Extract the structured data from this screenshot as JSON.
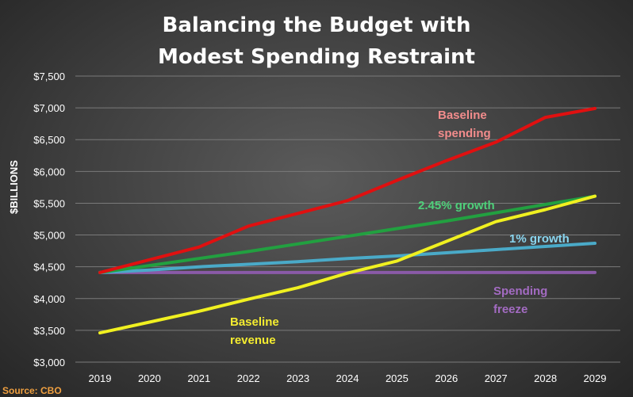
{
  "chart_data": {
    "type": "line",
    "title_lines": [
      "Balancing the Budget with",
      "Modest Spending Restraint"
    ],
    "ylabel": "$BILLIONS",
    "xlabel": "",
    "x": [
      2019,
      2020,
      2021,
      2022,
      2023,
      2024,
      2025,
      2026,
      2027,
      2028,
      2029
    ],
    "ylim": [
      3000,
      7500
    ],
    "ytick_values": [
      3000,
      3500,
      4000,
      4500,
      5000,
      5500,
      6000,
      6500,
      7000,
      7500
    ],
    "ytick_labels": [
      "$3,000",
      "$3,500",
      "$4,000",
      "$4,500",
      "$5,000",
      "$5,500",
      "$6,000",
      "$6,500",
      "$7,000",
      "$7,500"
    ],
    "grid": true,
    "series": [
      {
        "name": "Baseline spending",
        "label_lines": [
          "Baseline",
          "spending"
        ],
        "color": "#e01010",
        "label_color": "#f28c8c",
        "values": [
          4410,
          4610,
          4810,
          5140,
          5340,
          5540,
          5860,
          6170,
          6460,
          6850,
          6990
        ]
      },
      {
        "name": "2.45% growth",
        "label_lines": [
          "2.45% growth"
        ],
        "color": "#22a040",
        "label_color": "#4ed07a",
        "values": [
          4410,
          4520,
          4630,
          4740,
          4860,
          4980,
          5100,
          5220,
          5350,
          5480,
          5610
        ]
      },
      {
        "name": "1% growth",
        "label_lines": [
          "1% growth"
        ],
        "color": "#4aaac8",
        "label_color": "#8ad6f0",
        "values": [
          4410,
          4450,
          4500,
          4540,
          4580,
          4630,
          4670,
          4720,
          4770,
          4820,
          4870
        ]
      },
      {
        "name": "Spending freeze",
        "label_lines": [
          "Spending",
          "freeze"
        ],
        "color": "#8a5aa8",
        "label_color": "#a36bc2",
        "values": [
          4410,
          4410,
          4410,
          4410,
          4410,
          4410,
          4410,
          4410,
          4410,
          4410,
          4410
        ]
      },
      {
        "name": "Baseline revenue",
        "label_lines": [
          "Baseline",
          "revenue"
        ],
        "color": "#f0f020",
        "label_color": "#f4ec30",
        "values": [
          3460,
          3630,
          3800,
          3990,
          4170,
          4400,
          4590,
          4900,
          5210,
          5400,
          5610
        ]
      }
    ],
    "source": "Source: CBO"
  }
}
